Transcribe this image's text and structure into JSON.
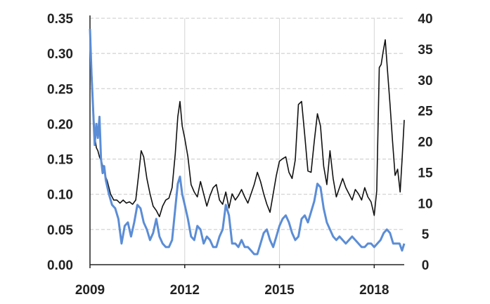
{
  "chart_data": {
    "type": "line",
    "title": "",
    "xlabel": "",
    "ylabel_left": "",
    "ylabel_right": "",
    "x_ticks": [
      "2009",
      "2012",
      "2015",
      "2018"
    ],
    "x_tick_values": [
      2009,
      2012,
      2015,
      2018
    ],
    "xlim": [
      2009,
      2018.95
    ],
    "y_left_ticks": [
      "0.00",
      "0.05",
      "0.10",
      "0.15",
      "0.20",
      "0.25",
      "0.30",
      "0.35"
    ],
    "y_left_lim": [
      0,
      0.35
    ],
    "y_right_ticks": [
      "0",
      "5",
      "10",
      "15",
      "20",
      "25",
      "30",
      "35",
      "40"
    ],
    "y_right_lim": [
      0,
      40
    ],
    "grid": true,
    "legend": "none",
    "series": [
      {
        "axis": "right",
        "color": "#111111",
        "x": [
          2009.0,
          2009.05,
          2009.1,
          2009.15,
          2009.2,
          2009.25,
          2009.3,
          2009.38,
          2009.45,
          2009.55,
          2009.65,
          2009.75,
          2009.85,
          2009.95,
          2010.05,
          2010.15,
          2010.25,
          2010.35,
          2010.45,
          2010.55,
          2010.62,
          2010.7,
          2010.8,
          2010.9,
          2011.0,
          2011.1,
          2011.2,
          2011.3,
          2011.4,
          2011.5,
          2011.6,
          2011.7,
          2011.78,
          2011.85,
          2011.92,
          2012.0,
          2012.1,
          2012.2,
          2012.3,
          2012.4,
          2012.5,
          2012.6,
          2012.7,
          2012.8,
          2012.9,
          2013.0,
          2013.1,
          2013.2,
          2013.3,
          2013.4,
          2013.5,
          2013.6,
          2013.7,
          2013.8,
          2013.9,
          2014.0,
          2014.1,
          2014.2,
          2014.3,
          2014.4,
          2014.5,
          2014.6,
          2014.7,
          2014.8,
          2014.9,
          2015.0,
          2015.1,
          2015.2,
          2015.3,
          2015.4,
          2015.5,
          2015.6,
          2015.7,
          2015.8,
          2015.9,
          2016.0,
          2016.1,
          2016.2,
          2016.3,
          2016.4,
          2016.5,
          2016.6,
          2016.7,
          2016.8,
          2016.9,
          2017.0,
          2017.1,
          2017.2,
          2017.3,
          2017.4,
          2017.5,
          2017.6,
          2017.7,
          2017.8,
          2017.9,
          2018.0,
          2018.08,
          2018.16,
          2018.22,
          2018.28,
          2018.35,
          2018.42,
          2018.5,
          2018.58,
          2018.66,
          2018.74,
          2018.82,
          2018.88,
          2018.95
        ],
        "values": [
          37,
          32,
          26,
          21,
          19,
          18.5,
          17.5,
          16.5,
          15,
          13.5,
          11.5,
          10.5,
          10.5,
          10,
          10.5,
          10,
          10.2,
          9.8,
          10.5,
          15,
          18.5,
          17.5,
          14,
          11.5,
          9.5,
          8.8,
          7.8,
          9.5,
          10.5,
          10.8,
          12.5,
          18,
          24,
          26.5,
          22.5,
          20.5,
          17.5,
          13,
          11.8,
          11,
          13.5,
          11.5,
          9.5,
          11.2,
          12.5,
          13,
          10.5,
          9.8,
          11.8,
          9.2,
          11.5,
          10.5,
          11.2,
          12.2,
          11,
          10,
          11.5,
          13,
          15,
          13.5,
          11.5,
          9.8,
          8.5,
          11.5,
          14.5,
          16.8,
          17.2,
          17.5,
          15,
          14,
          17,
          26,
          26.5,
          21,
          15.2,
          15,
          20,
          24.5,
          22.5,
          16,
          13,
          18.5,
          14,
          11,
          12.5,
          14,
          12.5,
          11.5,
          10.5,
          12.2,
          11.5,
          10.5,
          12.5,
          11,
          10.2,
          8,
          12,
          32,
          32.5,
          34.5,
          36.5,
          31.5,
          26,
          20,
          14.5,
          15.5,
          11.8,
          17,
          23.5
        ]
      },
      {
        "axis": "left",
        "color": "#5b8dd6",
        "x": [
          2009.0,
          2009.05,
          2009.1,
          2009.15,
          2009.2,
          2009.25,
          2009.3,
          2009.35,
          2009.4,
          2009.45,
          2009.5,
          2009.6,
          2009.7,
          2009.8,
          2009.9,
          2010.0,
          2010.1,
          2010.2,
          2010.3,
          2010.4,
          2010.5,
          2010.6,
          2010.7,
          2010.8,
          2010.9,
          2011.0,
          2011.1,
          2011.2,
          2011.3,
          2011.4,
          2011.5,
          2011.6,
          2011.7,
          2011.78,
          2011.85,
          2011.92,
          2012.0,
          2012.1,
          2012.2,
          2012.3,
          2012.4,
          2012.5,
          2012.6,
          2012.7,
          2012.8,
          2012.9,
          2013.0,
          2013.1,
          2013.2,
          2013.3,
          2013.4,
          2013.5,
          2013.6,
          2013.7,
          2013.8,
          2013.9,
          2014.0,
          2014.1,
          2014.2,
          2014.3,
          2014.4,
          2014.5,
          2014.6,
          2014.7,
          2014.8,
          2014.9,
          2015.0,
          2015.1,
          2015.2,
          2015.3,
          2015.4,
          2015.5,
          2015.6,
          2015.7,
          2015.8,
          2015.9,
          2016.0,
          2016.1,
          2016.2,
          2016.3,
          2016.4,
          2016.5,
          2016.6,
          2016.7,
          2016.8,
          2016.9,
          2017.0,
          2017.1,
          2017.2,
          2017.3,
          2017.4,
          2017.5,
          2017.6,
          2017.7,
          2017.8,
          2017.9,
          2018.0,
          2018.1,
          2018.2,
          2018.3,
          2018.4,
          2018.5,
          2018.6,
          2018.7,
          2018.8,
          2018.88,
          2018.95
        ],
        "values": [
          0.335,
          0.27,
          0.22,
          0.17,
          0.2,
          0.18,
          0.21,
          0.15,
          0.13,
          0.14,
          0.12,
          0.1,
          0.085,
          0.08,
          0.065,
          0.03,
          0.055,
          0.06,
          0.04,
          0.06,
          0.085,
          0.08,
          0.06,
          0.05,
          0.035,
          0.045,
          0.065,
          0.04,
          0.03,
          0.025,
          0.025,
          0.035,
          0.08,
          0.115,
          0.125,
          0.1,
          0.085,
          0.065,
          0.04,
          0.035,
          0.055,
          0.05,
          0.03,
          0.04,
          0.035,
          0.025,
          0.025,
          0.04,
          0.05,
          0.085,
          0.07,
          0.03,
          0.03,
          0.025,
          0.035,
          0.025,
          0.025,
          0.02,
          0.015,
          0.015,
          0.03,
          0.045,
          0.05,
          0.035,
          0.025,
          0.04,
          0.055,
          0.065,
          0.07,
          0.06,
          0.045,
          0.035,
          0.04,
          0.065,
          0.07,
          0.06,
          0.075,
          0.09,
          0.115,
          0.11,
          0.08,
          0.06,
          0.05,
          0.04,
          0.035,
          0.04,
          0.035,
          0.03,
          0.035,
          0.04,
          0.035,
          0.03,
          0.025,
          0.025,
          0.03,
          0.03,
          0.025,
          0.03,
          0.035,
          0.045,
          0.05,
          0.045,
          0.03,
          0.03,
          0.03,
          0.02,
          0.03
        ]
      }
    ]
  }
}
